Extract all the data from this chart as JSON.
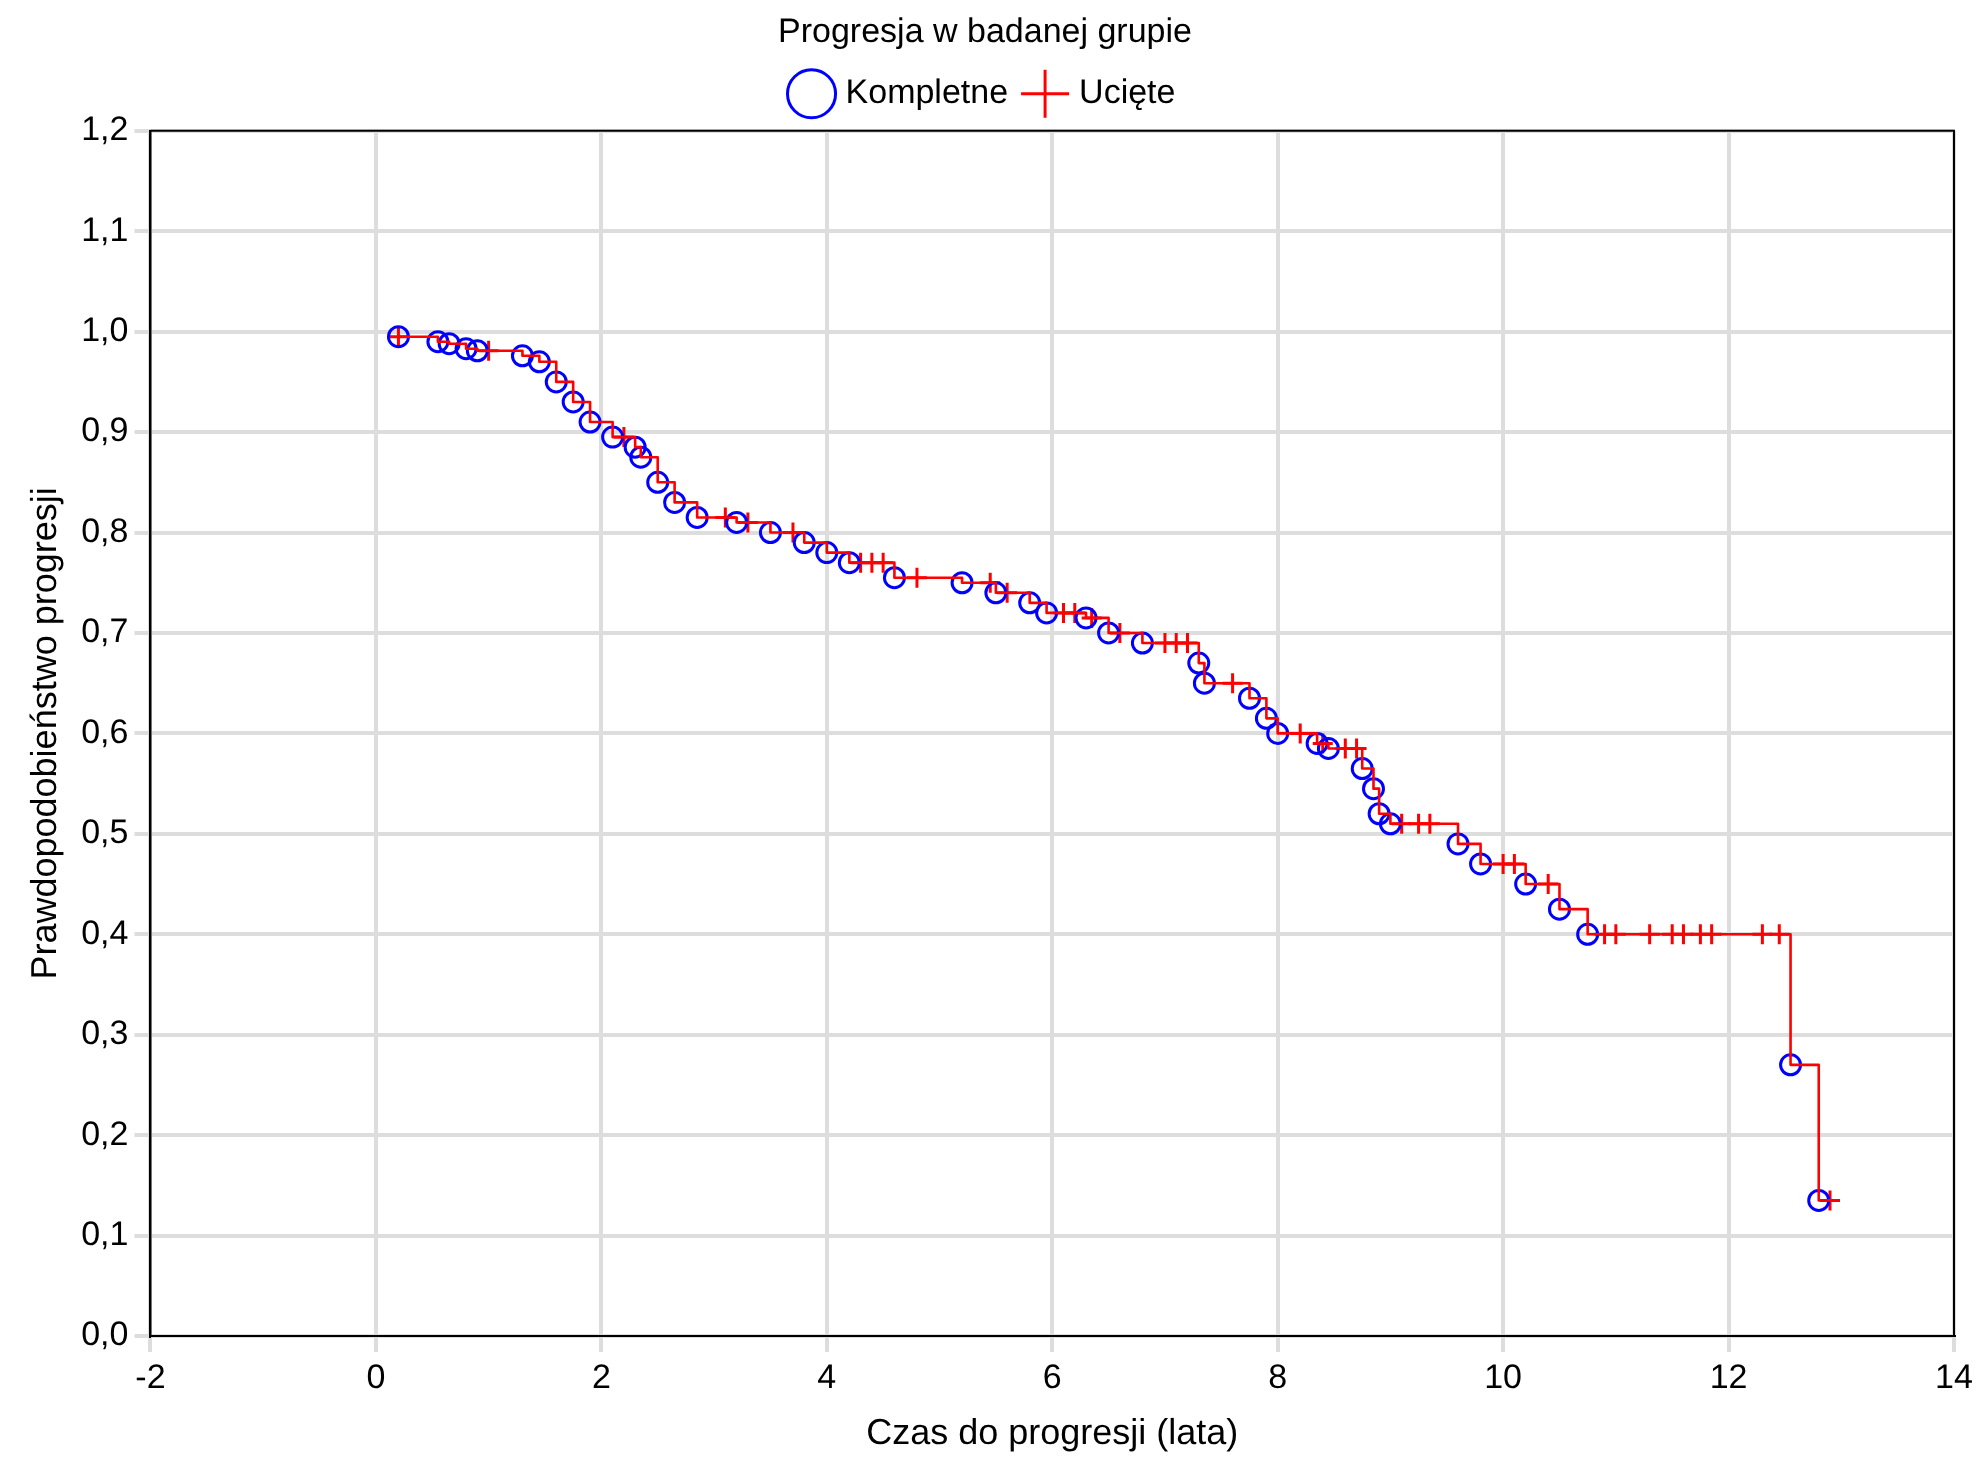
{
  "chart_data": {
    "type": "scatter",
    "legend_title": "Progresja w badanej grupie",
    "xlabel": "Czas do progresji (lata)",
    "ylabel": "Prawdopodobieństwo progresji",
    "legend": "top",
    "grid": true,
    "xlim": [
      -2,
      14
    ],
    "xticks": [
      -2,
      0,
      2,
      4,
      6,
      8,
      10,
      12,
      14
    ],
    "ylim": [
      0,
      1.2
    ],
    "yticks": [
      {
        "value": 0,
        "label": "0,0"
      },
      {
        "value": 0.1,
        "label": "0,1"
      },
      {
        "value": 0.2,
        "label": "0,2"
      },
      {
        "value": 0.3,
        "label": "0,3"
      },
      {
        "value": 0.4,
        "label": "0,4"
      },
      {
        "value": 0.5,
        "label": "0,5"
      },
      {
        "value": 0.6,
        "label": "0,6"
      },
      {
        "value": 0.7,
        "label": "0,7"
      },
      {
        "value": 0.8,
        "label": "0,8"
      },
      {
        "value": 0.9,
        "label": "0,9"
      },
      {
        "value": 1.0,
        "label": "1,0"
      },
      {
        "value": 1.1,
        "label": "1,1"
      },
      {
        "value": 1.2,
        "label": "1,2"
      }
    ],
    "series": [
      {
        "type": "step",
        "color": "#ff0000",
        "marker": "none",
        "x": [
          0.2,
          0.55,
          0.65,
          0.8,
          0.9,
          1.3,
          1.45,
          1.6,
          1.75,
          1.9,
          2.1,
          2.3,
          2.35,
          2.5,
          2.65,
          2.85,
          3.2,
          3.5,
          3.8,
          4.0,
          4.2,
          4.6,
          5.2,
          5.5,
          5.8,
          5.95,
          6.3,
          6.5,
          6.8,
          7.3,
          7.35,
          7.75,
          7.9,
          8.0,
          8.35,
          8.45,
          8.75,
          8.85,
          8.9,
          9.0,
          9.6,
          9.8,
          10.2,
          10.5,
          10.75,
          12.55,
          12.8,
          12.95
        ],
        "values": [
          0.995,
          0.99,
          0.988,
          0.983,
          0.981,
          0.976,
          0.97,
          0.95,
          0.93,
          0.91,
          0.895,
          0.885,
          0.875,
          0.85,
          0.83,
          0.815,
          0.81,
          0.8,
          0.79,
          0.78,
          0.77,
          0.755,
          0.75,
          0.74,
          0.73,
          0.72,
          0.715,
          0.7,
          0.69,
          0.67,
          0.65,
          0.635,
          0.615,
          0.6,
          0.59,
          0.585,
          0.565,
          0.545,
          0.52,
          0.51,
          0.49,
          0.47,
          0.45,
          0.425,
          0.4,
          0.27,
          0.135,
          0.135
        ]
      },
      {
        "type": "scatter",
        "name": "Kompletne",
        "color": "#0000ff",
        "marker": "circle",
        "x": [
          0.2,
          0.55,
          0.65,
          0.8,
          0.9,
          1.3,
          1.45,
          1.6,
          1.75,
          1.9,
          2.1,
          2.3,
          2.35,
          2.5,
          2.65,
          2.85,
          3.2,
          3.5,
          3.8,
          4.0,
          4.2,
          4.6,
          5.2,
          5.5,
          5.8,
          5.95,
          6.3,
          6.5,
          6.8,
          7.3,
          7.35,
          7.75,
          7.9,
          8.0,
          8.35,
          8.45,
          8.75,
          8.85,
          8.9,
          9.0,
          9.6,
          9.8,
          10.2,
          10.5,
          10.75,
          12.55,
          12.8
        ],
        "values": [
          0.995,
          0.99,
          0.988,
          0.983,
          0.981,
          0.976,
          0.97,
          0.95,
          0.93,
          0.91,
          0.895,
          0.885,
          0.875,
          0.85,
          0.83,
          0.815,
          0.81,
          0.8,
          0.79,
          0.78,
          0.77,
          0.755,
          0.75,
          0.74,
          0.73,
          0.72,
          0.715,
          0.7,
          0.69,
          0.67,
          0.65,
          0.635,
          0.615,
          0.6,
          0.59,
          0.585,
          0.565,
          0.545,
          0.52,
          0.51,
          0.49,
          0.47,
          0.45,
          0.425,
          0.4,
          0.27,
          0.135
        ]
      },
      {
        "type": "scatter",
        "name": "Ucięte",
        "color": "#ff0000",
        "marker": "cross",
        "x": [
          0.2,
          1.0,
          2.2,
          3.1,
          3.3,
          3.7,
          4.3,
          4.4,
          4.5,
          4.8,
          5.45,
          5.6,
          6.1,
          6.2,
          6.35,
          6.6,
          7.0,
          7.1,
          7.2,
          7.6,
          8.2,
          8.4,
          8.6,
          8.7,
          9.1,
          9.25,
          9.35,
          10.0,
          10.1,
          10.4,
          10.9,
          11.0,
          11.3,
          11.5,
          11.6,
          11.75,
          11.85,
          12.3,
          12.45,
          12.9
        ],
        "values": [
          0.995,
          0.981,
          0.895,
          0.815,
          0.81,
          0.8,
          0.77,
          0.77,
          0.77,
          0.755,
          0.75,
          0.74,
          0.72,
          0.72,
          0.715,
          0.7,
          0.69,
          0.69,
          0.69,
          0.65,
          0.6,
          0.59,
          0.585,
          0.585,
          0.51,
          0.51,
          0.51,
          0.47,
          0.47,
          0.45,
          0.4,
          0.4,
          0.4,
          0.4,
          0.4,
          0.4,
          0.4,
          0.4,
          0.4,
          0.135
        ]
      }
    ]
  }
}
